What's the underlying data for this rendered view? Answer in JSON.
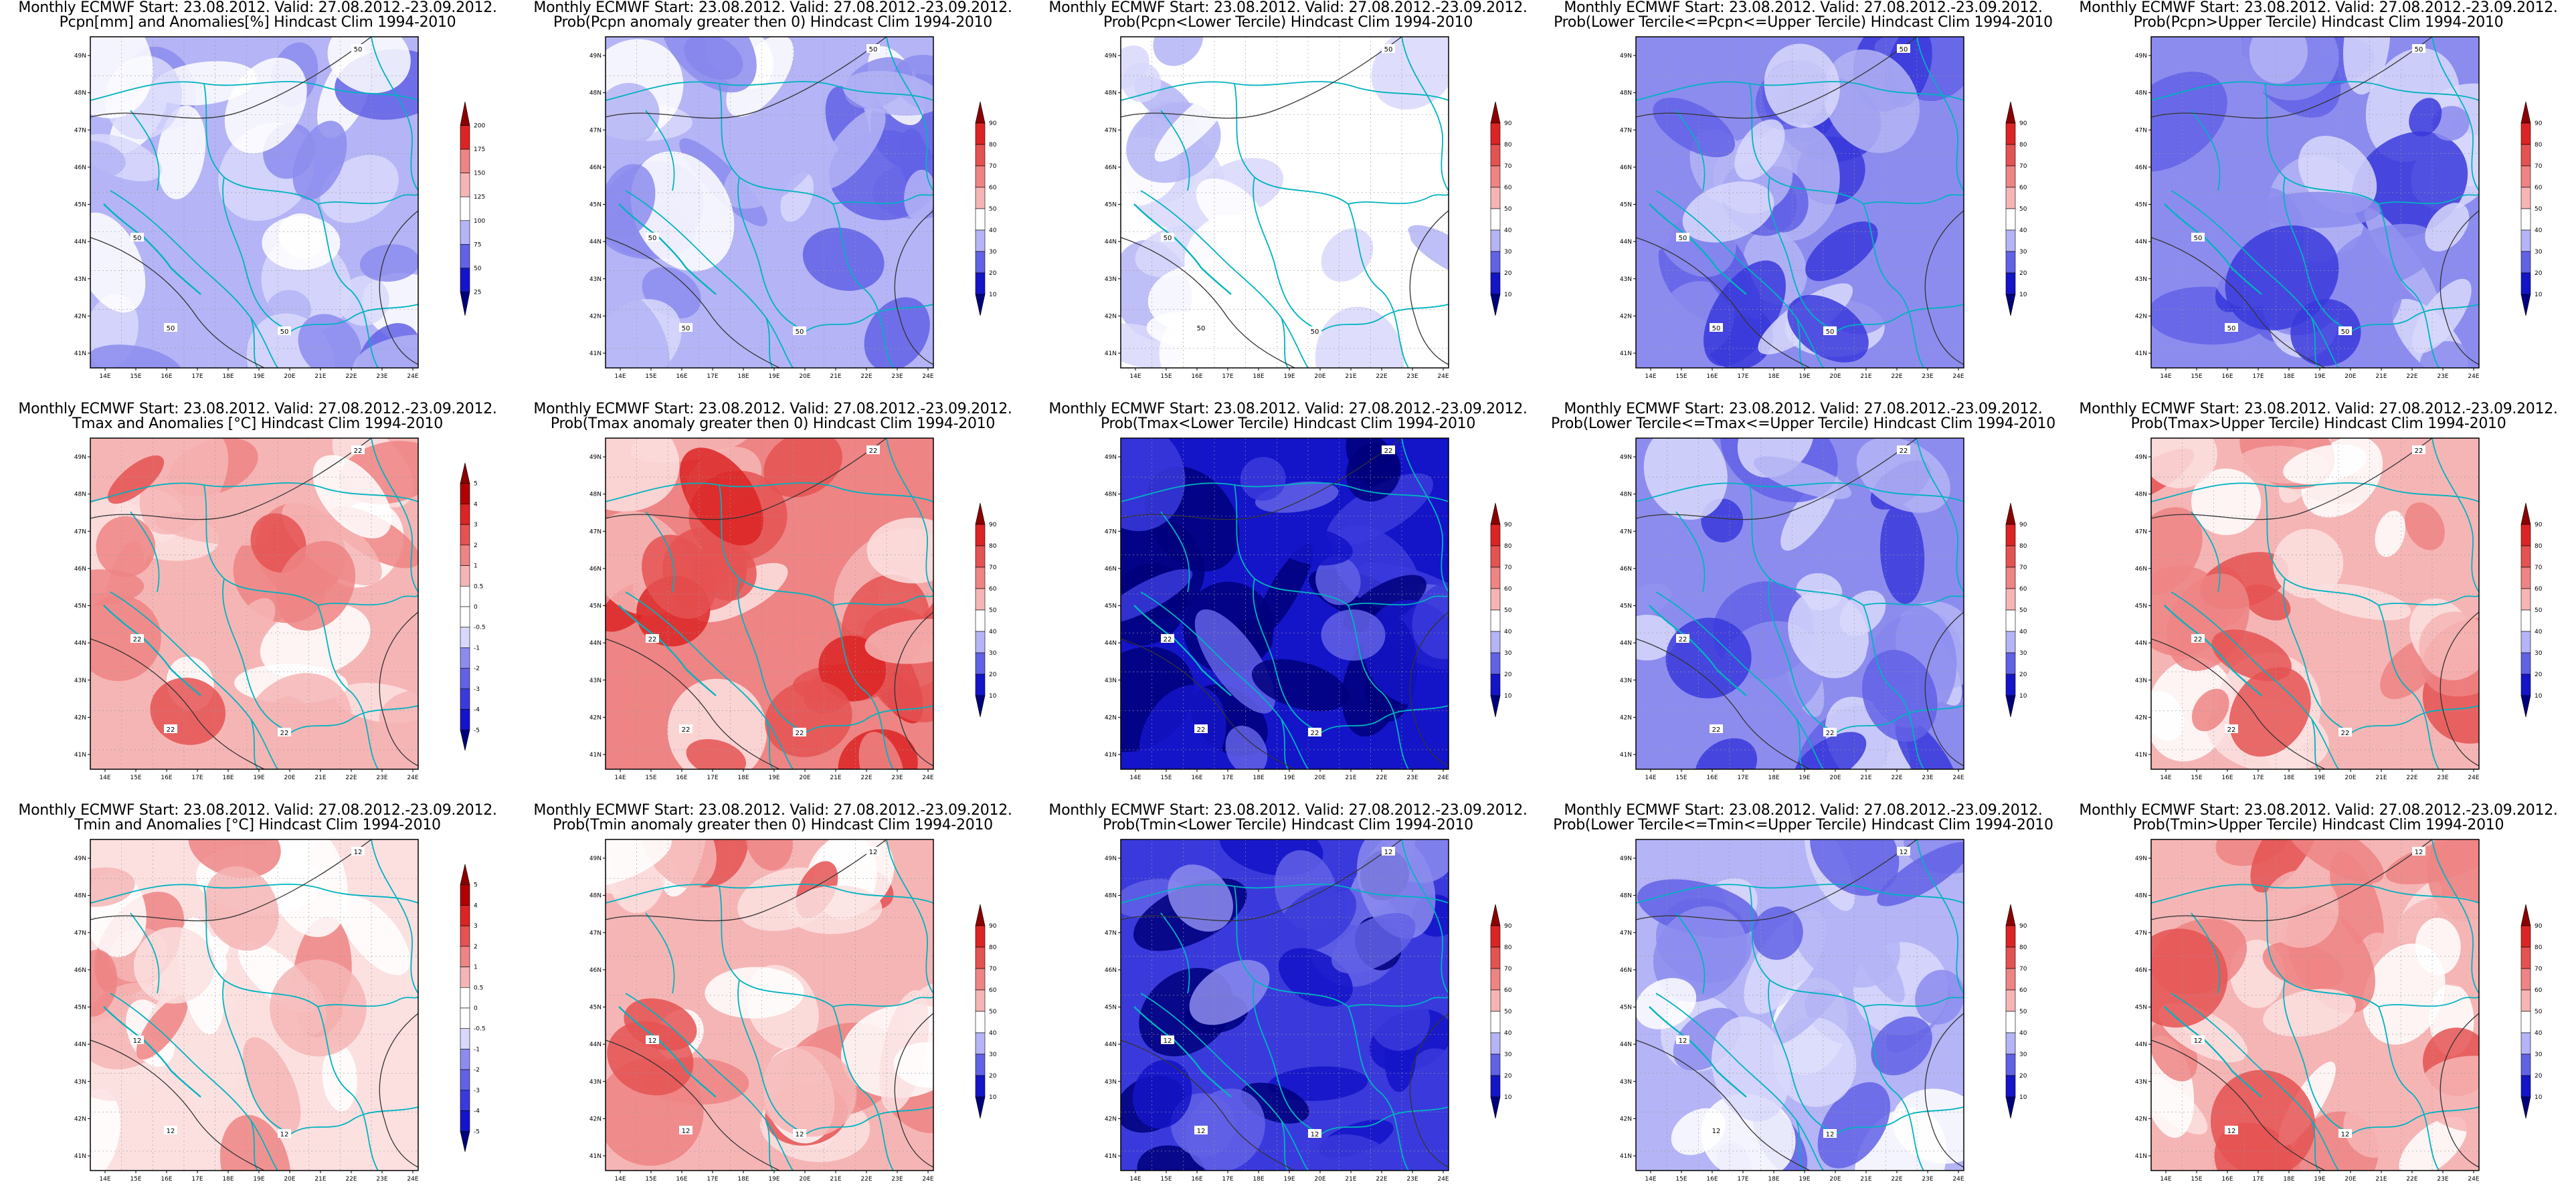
{
  "lat_labels": [
    "49N",
    "48N",
    "47N",
    "46N",
    "45N",
    "44N",
    "43N",
    "42N",
    "41N"
  ],
  "lon_labels": [
    "14E",
    "15E",
    "16E",
    "17E",
    "18E",
    "19E",
    "20E",
    "21E",
    "22E",
    "23E",
    "24E"
  ],
  "colorbars": {
    "pcpn_anom": [
      "200",
      "175",
      "150",
      "125",
      "100",
      "75",
      "50",
      "25"
    ],
    "temp_anom": [
      "5",
      "4",
      "3",
      "2",
      "1",
      "0.5",
      "0",
      "-0.5",
      "-1",
      "-2",
      "-3",
      "-4",
      "-5"
    ],
    "prob": [
      "90",
      "80",
      "70",
      "60",
      "50",
      "40",
      "30",
      "20",
      "10"
    ]
  },
  "colors": {
    "red_scale": [
      "#ffffff",
      "#fce0e0",
      "#f6b5b5",
      "#ee8484",
      "#e55252",
      "#dc2424",
      "#b00000",
      "#800000"
    ],
    "blue_scale": [
      "#ffffff",
      "#d8d8fc",
      "#b4b4f6",
      "#8c8cef",
      "#6262e6",
      "#3a3adc",
      "#1414c8",
      "#00007c"
    ],
    "border": "#00b3c0",
    "contour": "#333333"
  },
  "panels": [
    {
      "id": "pcpn-anom",
      "title1": "Monthly ECMWF Start: 23.08.2012. Valid: 27.08.2012.-23.09.2012.",
      "title2": "Pcpn[mm] and Anomalies[%] Hindcast Clim 1994-2010",
      "scheme": "blue",
      "base": 2,
      "contours": [
        "50",
        "50",
        "50",
        "50"
      ],
      "cbar": "pcpn_anom"
    },
    {
      "id": "pcpn-prob-gt0",
      "title1": "Monthly ECMWF Start: 23.08.2012. Valid: 27.08.2012.-23.09.2012.",
      "title2": "Prob(Pcpn anomaly greater then 0) Hindcast Clim 1994-2010",
      "scheme": "blue",
      "base": 2,
      "contours": [
        "50",
        "50",
        "50",
        "50"
      ],
      "cbar": "prob"
    },
    {
      "id": "pcpn-prob-lower",
      "title1": "Monthly ECMWF Start: 23.08.2012. Valid: 27.08.2012.-23.09.2012.",
      "title2": "Prob(Pcpn<Lower Tercile) Hindcast Clim 1994-2010",
      "scheme": "blue",
      "base": 0,
      "contours": [
        "50",
        "50",
        "50",
        "50"
      ],
      "cbar": "prob"
    },
    {
      "id": "pcpn-prob-middle",
      "title1": "Monthly ECMWF Start: 23.08.2012. Valid: 27.08.2012.-23.09.2012.",
      "title2": "Prob(Lower Tercile<=Pcpn<=Upper Tercile) Hindcast Clim 1994-2010",
      "scheme": "blue",
      "base": 3,
      "contours": [
        "50",
        "50",
        "50",
        "50"
      ],
      "cbar": "prob"
    },
    {
      "id": "pcpn-prob-upper",
      "title1": "Monthly ECMWF Start: 23.08.2012. Valid: 27.08.2012.-23.09.2012.",
      "title2": "Prob(Pcpn>Upper Tercile) Hindcast Clim 1994-2010",
      "scheme": "blue",
      "base": 3,
      "contours": [
        "50",
        "50",
        "50",
        "50"
      ],
      "cbar": "prob"
    },
    {
      "id": "tmax-anom",
      "title1": "Monthly ECMWF Start: 23.08.2012. Valid: 27.08.2012.-23.09.2012.",
      "title2": "Tmax and Anomalies [°C] Hindcast Clim 1994-2010",
      "scheme": "red",
      "base": 2,
      "contours": [
        "22",
        "22",
        "22",
        "22"
      ],
      "cbar": "temp_anom"
    },
    {
      "id": "tmax-prob-gt0",
      "title1": "Monthly ECMWF Start: 23.08.2012. Valid: 27.08.2012.-23.09.2012.",
      "title2": "Prob(Tmax anomaly greater then 0) Hindcast Clim 1994-2010",
      "scheme": "red",
      "base": 3,
      "contours": [
        "22",
        "22",
        "22",
        "22"
      ],
      "cbar": "prob"
    },
    {
      "id": "tmax-prob-lower",
      "title1": "Monthly ECMWF Start: 23.08.2012. Valid: 27.08.2012.-23.09.2012.",
      "title2": "Prob(Tmax<Lower Tercile) Hindcast Clim 1994-2010",
      "scheme": "blue",
      "base": 6,
      "contours": [
        "22",
        "22",
        "22",
        "22"
      ],
      "cbar": "prob"
    },
    {
      "id": "tmax-prob-middle",
      "title1": "Monthly ECMWF Start: 23.08.2012. Valid: 27.08.2012.-23.09.2012.",
      "title2": "Prob(Lower Tercile<=Tmax<=Upper Tercile) Hindcast Clim 1994-2010",
      "scheme": "blue",
      "base": 3,
      "contours": [
        "22",
        "22",
        "22",
        "22"
      ],
      "cbar": "prob"
    },
    {
      "id": "tmax-prob-upper",
      "title1": "Monthly ECMWF Start: 23.08.2012. Valid: 27.08.2012.-23.09.2012.",
      "title2": "Prob(Tmax>Upper Tercile) Hindcast Clim 1994-2010",
      "scheme": "red",
      "base": 2,
      "contours": [
        "22",
        "22",
        "22",
        "22"
      ],
      "cbar": "prob"
    },
    {
      "id": "tmin-anom",
      "title1": "Monthly ECMWF Start: 23.08.2012. Valid: 27.08.2012.-23.09.2012.",
      "title2": "Tmin and Anomalies [°C] Hindcast Clim 1994-2010",
      "scheme": "red",
      "base": 1,
      "contours": [
        "12",
        "12",
        "12",
        "12"
      ],
      "cbar": "temp_anom"
    },
    {
      "id": "tmin-prob-gt0",
      "title1": "Monthly ECMWF Start: 23.08.2012. Valid: 27.08.2012.-23.09.2012.",
      "title2": "Prob(Tmin anomaly greater then 0) Hindcast Clim 1994-2010",
      "scheme": "red",
      "base": 2,
      "contours": [
        "12",
        "12",
        "12",
        "12"
      ],
      "cbar": "prob"
    },
    {
      "id": "tmin-prob-lower",
      "title1": "Monthly ECMWF Start: 23.08.2012. Valid: 27.08.2012.-23.09.2012.",
      "title2": "Prob(Tmin<Lower Tercile) Hindcast Clim 1994-2010",
      "scheme": "blue",
      "base": 5,
      "contours": [
        "12",
        "12",
        "12",
        "12"
      ],
      "cbar": "prob"
    },
    {
      "id": "tmin-prob-middle",
      "title1": "Monthly ECMWF Start: 23.08.2012. Valid: 27.08.2012.-23.09.2012.",
      "title2": "Prob(Lower Tercile<=Tmin<=Upper Tercile) Hindcast Clim 1994-2010",
      "scheme": "blue",
      "base": 2,
      "contours": [
        "12",
        "12",
        "12",
        "12"
      ],
      "cbar": "prob"
    },
    {
      "id": "tmin-prob-upper",
      "title1": "Monthly ECMWF Start: 23.08.2012. Valid: 27.08.2012.-23.09.2012.",
      "title2": "Prob(Tmin>Upper Tercile) Hindcast Clim 1994-2010",
      "scheme": "red",
      "base": 2,
      "contours": [
        "12",
        "12",
        "12",
        "12"
      ],
      "cbar": "prob"
    }
  ]
}
